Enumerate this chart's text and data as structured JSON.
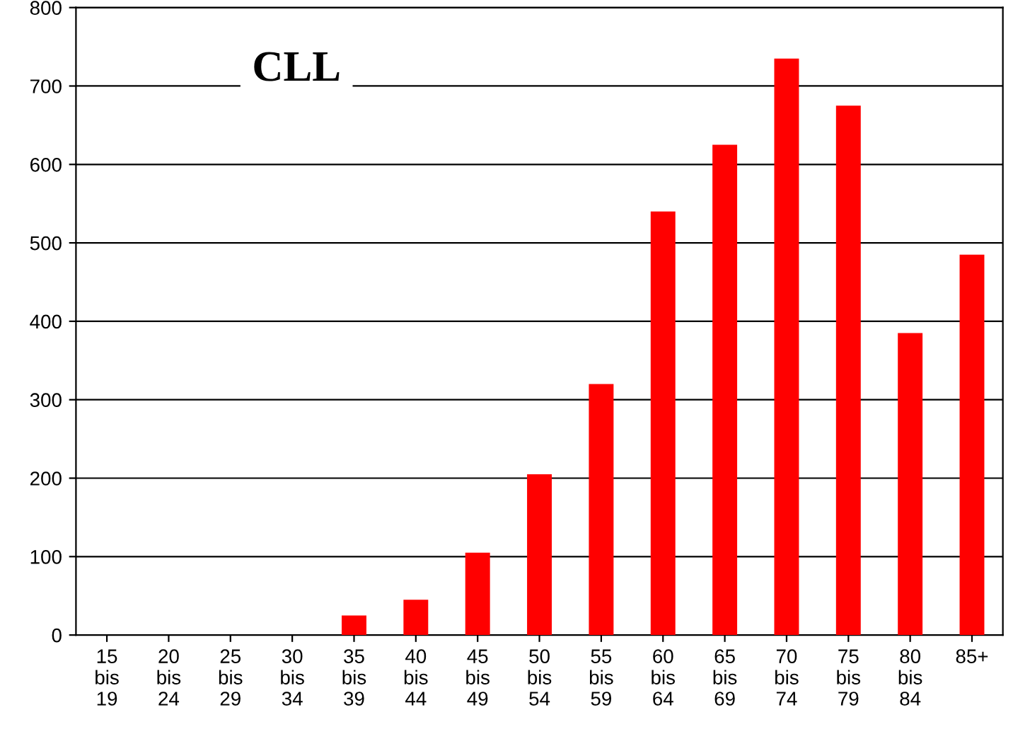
{
  "chart_data": {
    "type": "bar",
    "title": "CLL",
    "categories": [
      "15\nbis\n19",
      "20\nbis\n24",
      "25\nbis\n29",
      "30\nbis\n34",
      "35\nbis\n39",
      "40\nbis\n44",
      "45\nbis\n49",
      "50\nbis\n54",
      "55\nbis\n59",
      "60\nbis\n64",
      "65\nbis\n69",
      "70\nbis\n74",
      "75\nbis\n79",
      "80\nbis\n84",
      "85+"
    ],
    "values": [
      0,
      0,
      0,
      0,
      25,
      45,
      105,
      205,
      320,
      540,
      625,
      735,
      675,
      385,
      485
    ],
    "color": "#ff0000",
    "ylim": [
      0,
      800
    ],
    "yticks": [
      0,
      100,
      200,
      300,
      400,
      500,
      600,
      700,
      800
    ],
    "grid": "y"
  }
}
